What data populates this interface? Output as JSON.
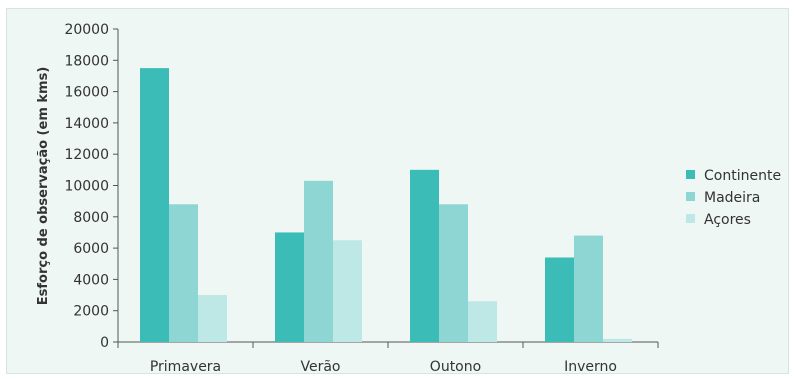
{
  "chart_data": {
    "type": "bar",
    "title": "",
    "xlabel": "",
    "ylabel": "Esforço de observação (em kms)",
    "ylim": [
      0,
      20000
    ],
    "yticks": [
      0,
      2000,
      4000,
      6000,
      8000,
      10000,
      12000,
      14000,
      16000,
      18000,
      20000
    ],
    "ytick_labels": [
      "0",
      "2000",
      "4000",
      "6000",
      "8000",
      "10000",
      "12000",
      "14000",
      "16000",
      "18000",
      "20000"
    ],
    "categories": [
      "Primavera",
      "Verão",
      "Outono",
      "Inverno"
    ],
    "series": [
      {
        "name": "Continente",
        "color": "#3bbcb6",
        "values": [
          17500,
          7000,
          11000,
          5400
        ]
      },
      {
        "name": "Madeira",
        "color": "#8ed6d3",
        "values": [
          8800,
          10300,
          8800,
          6800
        ]
      },
      {
        "name": "Açores",
        "color": "#bde8e5",
        "values": [
          3000,
          6500,
          2600,
          200
        ]
      }
    ],
    "grid": false,
    "legend": "right"
  }
}
